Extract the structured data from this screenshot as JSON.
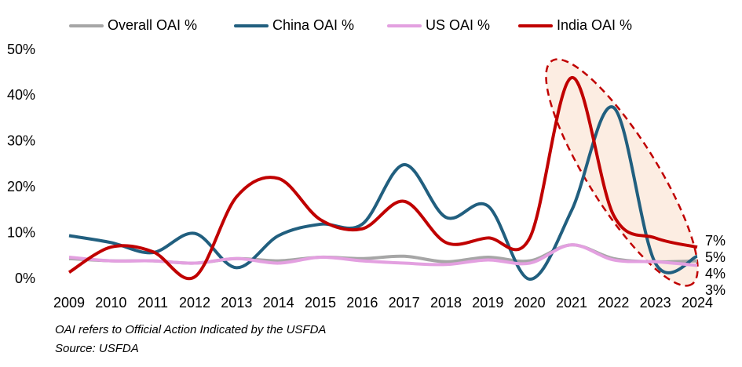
{
  "chart_data": {
    "type": "line",
    "categories": [
      "2009",
      "2010",
      "2011",
      "2012",
      "2013",
      "2014",
      "2015",
      "2016",
      "2017",
      "2018",
      "2019",
      "2020",
      "2021",
      "2022",
      "2023",
      "2024"
    ],
    "series": [
      {
        "name": "Overall OAI %",
        "color": "#a6a6a6",
        "label_color": "#8c8c8c",
        "values": [
          4.5,
          4,
          4,
          3.5,
          4.5,
          4,
          4.8,
          4.5,
          5,
          3.8,
          4.8,
          4,
          7.5,
          4.5,
          3.8,
          4
        ],
        "value_labels": [
          null,
          null,
          null,
          null,
          null,
          null,
          null,
          null,
          null,
          null,
          null,
          null,
          null,
          null,
          null,
          "4%"
        ]
      },
      {
        "name": "China OAI %",
        "color": "#215f7f",
        "label_color": "#215f7f",
        "values": [
          9.5,
          8,
          5.8,
          10,
          2.5,
          9.5,
          12,
          12,
          25,
          13.5,
          16,
          0,
          15,
          37.5,
          3.5,
          5
        ],
        "value_labels": [
          null,
          null,
          null,
          null,
          null,
          null,
          null,
          null,
          null,
          null,
          null,
          null,
          null,
          null,
          null,
          "5%"
        ]
      },
      {
        "name": "US OAI %",
        "color": "#e3a0e0",
        "label_color": "#a040a0",
        "values": [
          4.8,
          4,
          4,
          3.5,
          4.5,
          3.5,
          4.8,
          4,
          3.5,
          3.2,
          4.2,
          3.5,
          7.5,
          4.2,
          3.8,
          3
        ],
        "value_labels": [
          null,
          null,
          null,
          null,
          null,
          null,
          null,
          null,
          null,
          null,
          null,
          null,
          null,
          null,
          null,
          "3%"
        ]
      },
      {
        "name": "India OAI %",
        "color": "#c00000",
        "label_color": "#c00000",
        "values": [
          1.5,
          7,
          6,
          0.5,
          18,
          22,
          13,
          11,
          17,
          8,
          9,
          9,
          44,
          14,
          9,
          7
        ],
        "value_labels": [
          null,
          null,
          null,
          null,
          null,
          null,
          null,
          null,
          null,
          null,
          null,
          null,
          null,
          null,
          null,
          "7%"
        ]
      }
    ],
    "ylim": [
      0,
      50
    ],
    "yticks": [
      {
        "value": 0,
        "label": "0%"
      },
      {
        "value": 10,
        "label": "10%"
      },
      {
        "value": 20,
        "label": "20%"
      },
      {
        "value": 30,
        "label": "30%"
      },
      {
        "value": 40,
        "label": "40%"
      },
      {
        "value": 50,
        "label": "50%"
      }
    ],
    "grid": false,
    "legend": "top",
    "notes": [
      "OAI refers to Official Action Indicated by the USFDA",
      "Source: USFDA"
    ]
  }
}
